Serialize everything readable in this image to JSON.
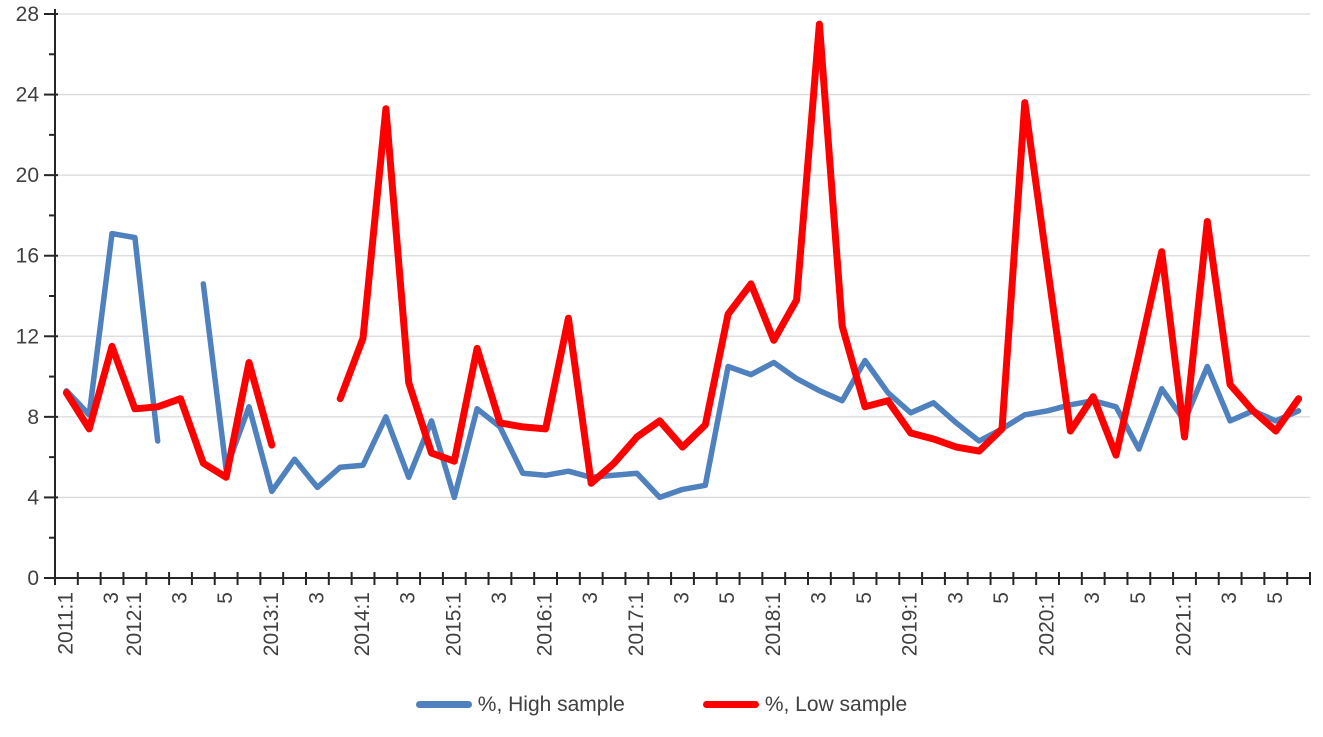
{
  "chart_data": {
    "type": "line",
    "title": "",
    "xlabel": "",
    "ylabel": "",
    "grid": "horizontal",
    "legend_position": "bottom",
    "colors": {
      "high_sample": "#4E81BD",
      "low_sample": "#FF0000",
      "axis_line": "#262626",
      "gridline": "#D9D9D9",
      "tick_text": "#404040"
    },
    "y_axis": {
      "min": 0,
      "max": 28,
      "major_step": 4,
      "minor_step": 2,
      "tick_labels": [
        "0",
        "4",
        "8",
        "12",
        "16",
        "20",
        "24",
        "28"
      ]
    },
    "x_axis": {
      "labels": [
        "2011:1",
        "",
        "3",
        "2012:1",
        "",
        "3",
        "",
        "5",
        "",
        "2013:1",
        "",
        "3",
        "",
        "2014:1",
        "",
        "3",
        "",
        "2015:1",
        "",
        "3",
        "",
        "2016:1",
        "",
        "3",
        "",
        "2017:1",
        "",
        "3",
        "",
        "5",
        "",
        "2018:1",
        "",
        "3",
        "",
        "5",
        "",
        "2019:1",
        "",
        "3",
        "",
        "5",
        "",
        "2020:1",
        "",
        "3",
        "",
        "5",
        "",
        "2021:1",
        "",
        "3",
        "",
        "5",
        ""
      ]
    },
    "series": [
      {
        "name": "%, High sample",
        "color": "#4E81BD",
        "stroke_width": 5.5,
        "values": [
          9.3,
          8.1,
          17.1,
          16.9,
          6.8,
          null,
          14.6,
          5.4,
          8.5,
          4.3,
          5.9,
          4.5,
          5.5,
          5.6,
          8.0,
          5.0,
          7.8,
          4.0,
          8.4,
          7.5,
          5.2,
          5.1,
          5.3,
          5.0,
          5.1,
          5.2,
          4.0,
          4.4,
          4.6,
          10.5,
          10.1,
          10.7,
          9.9,
          9.3,
          8.8,
          10.8,
          9.2,
          8.2,
          8.7,
          7.7,
          6.8,
          7.4,
          8.1,
          8.3,
          8.6,
          8.8,
          8.5,
          6.4,
          9.4,
          7.8,
          10.5,
          7.8,
          8.3,
          7.8,
          8.3
        ]
      },
      {
        "name": "%, Low sample",
        "color": "#FF0000",
        "stroke_width": 7,
        "values": [
          9.2,
          7.4,
          11.5,
          8.4,
          8.5,
          8.9,
          5.7,
          5.0,
          10.7,
          6.6,
          null,
          null,
          8.9,
          11.9,
          23.3,
          9.7,
          6.2,
          5.8,
          11.4,
          7.7,
          7.5,
          7.4,
          12.9,
          4.7,
          5.7,
          7.0,
          7.8,
          6.5,
          7.6,
          13.1,
          14.6,
          11.8,
          13.8,
          27.5,
          12.5,
          8.5,
          8.8,
          7.2,
          6.9,
          6.5,
          6.3,
          7.4,
          23.6,
          15.4,
          7.3,
          9.0,
          6.1,
          11.1,
          16.2,
          7.0,
          17.7,
          9.6,
          8.3,
          7.3,
          8.9
        ]
      }
    ]
  },
  "legend": {
    "high_label": "%, High sample",
    "low_label": "%, Low sample"
  }
}
